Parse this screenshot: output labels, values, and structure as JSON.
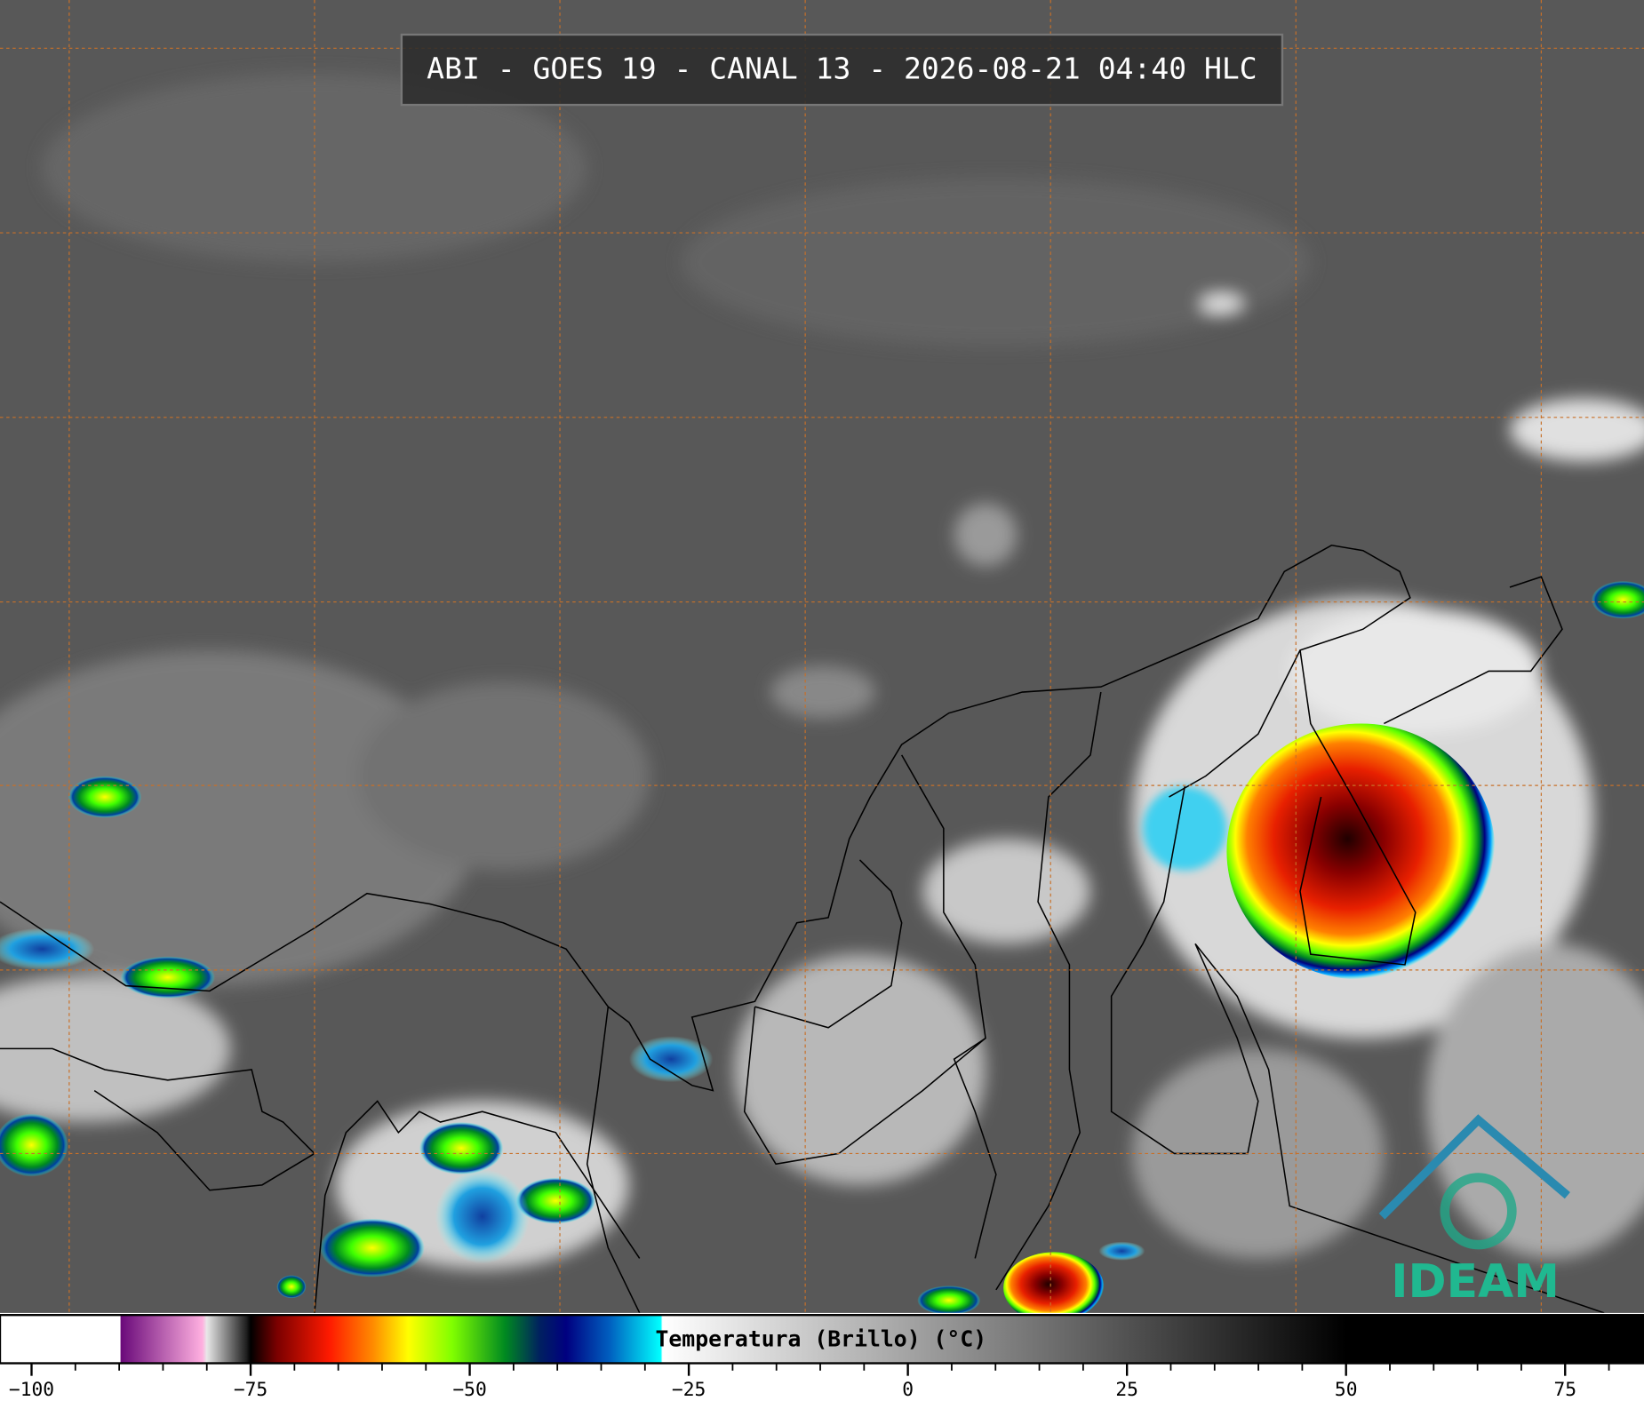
{
  "title": "ABI - GOES 19 - CANAL 13 - 2026-08-21 04:40 HLC",
  "colorbar": {
    "label": "Temperatura (Brillo) (°C)",
    "range": [
      -103.6,
      84
    ],
    "ticks": [
      {
        "value": -100,
        "label": "−100"
      },
      {
        "value": -75,
        "label": "−75"
      },
      {
        "value": -50,
        "label": "−50"
      },
      {
        "value": -25,
        "label": "−25"
      },
      0,
      25,
      50,
      75
    ],
    "minor_ticks": [
      -95,
      -90,
      -85,
      -80,
      -70,
      -65,
      -60,
      -55,
      -45,
      -40,
      -35,
      -30,
      -20,
      -15,
      -10,
      -5,
      5,
      10,
      15,
      20,
      30,
      35,
      40,
      45,
      55,
      60,
      65,
      70,
      80
    ],
    "color_stops": [
      [
        -103.6,
        "#ffffff"
      ],
      [
        -89.9,
        "#ffffff"
      ],
      [
        -89.8,
        "#6a0a7a"
      ],
      [
        -80.5,
        "#ffb0e0"
      ],
      [
        -80,
        "#e8e8e8"
      ],
      [
        -75.5,
        "#202020"
      ],
      [
        -75,
        "#000000"
      ],
      [
        -72,
        "#7a0000"
      ],
      [
        -66,
        "#ff1a00"
      ],
      [
        -61,
        "#ff8c00"
      ],
      [
        -57,
        "#ffff00"
      ],
      [
        -52,
        "#80ff00"
      ],
      [
        -46,
        "#008a20"
      ],
      [
        -42,
        "#002060"
      ],
      [
        -39,
        "#000080"
      ],
      [
        -34,
        "#0060c0"
      ],
      [
        -28.2,
        "#00ffff"
      ],
      [
        -28,
        "#ffffff"
      ],
      [
        50,
        "#000000"
      ],
      [
        84,
        "#000000"
      ]
    ]
  },
  "logo": "IDEAM"
}
